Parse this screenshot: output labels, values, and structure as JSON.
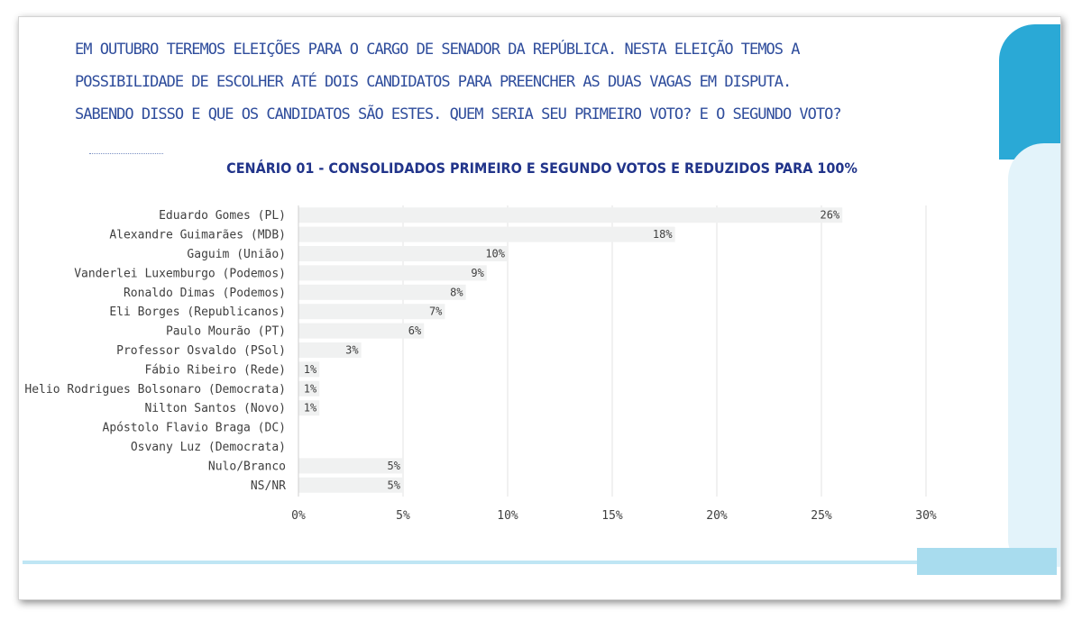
{
  "question": {
    "lines": [
      "EM OUTUBRO TEREMOS ELEIÇÕES PARA O CARGO DE SENADOR DA REPÚBLICA. NESTA ELEIÇÃO TEMOS A",
      "POSSIBILIDADE DE ESCOLHER ATÉ DOIS CANDIDATOS PARA PREENCHER AS DUAS VAGAS EM DISPUTA.",
      "SABENDO DISSO E QUE OS CANDIDATOS SÃO ESTES. QUEM SERIA SEU PRIMEIRO VOTO? E O SEGUNDO VOTO?"
    ]
  },
  "colors": {
    "bar": "#f0f1f1",
    "grid": "#e3e3e3",
    "title": "#21348a",
    "question": "#2f4d9c",
    "accent_dark": "#2aa9d6",
    "accent_light": "#e3f3fa"
  },
  "chart_data": {
    "type": "bar",
    "orientation": "horizontal",
    "title": "CENÁRIO 01 - CONSOLIDADOS PRIMEIRO E SEGUNDO VOTOS E REDUZIDOS PARA 100%",
    "categories": [
      "Eduardo Gomes (PL)",
      "Alexandre Guimarães (MDB)",
      "Gaguim (União)",
      "Vanderlei Luxemburgo (Podemos)",
      "Ronaldo Dimas (Podemos)",
      "Eli Borges (Republicanos)",
      "Paulo Mourão (PT)",
      "Professor Osvaldo (PSol)",
      "Fábio Ribeiro (Rede)",
      "Helio Rodrigues Bolsonaro (Democrata)",
      "Nilton Santos (Novo)",
      "Apóstolo Flavio Braga (DC)",
      "Osvany Luz (Democrata)",
      "Nulo/Branco",
      "NS/NR"
    ],
    "values": [
      26,
      18,
      10,
      9,
      8,
      7,
      6,
      3,
      1,
      1,
      1,
      0,
      0,
      5,
      5
    ],
    "value_labels": [
      "26%",
      "18%",
      "10%",
      "9%",
      "8%",
      "7%",
      "6%",
      "3%",
      "1%",
      "1%",
      "1%",
      "",
      "",
      "5%",
      "5%"
    ],
    "xlim": [
      0,
      30
    ],
    "xticks": [
      0,
      5,
      10,
      15,
      20,
      25,
      30
    ],
    "xtick_labels": [
      "0%",
      "5%",
      "10%",
      "15%",
      "20%",
      "25%",
      "30%"
    ],
    "grid": "vertical",
    "legend": "none"
  }
}
